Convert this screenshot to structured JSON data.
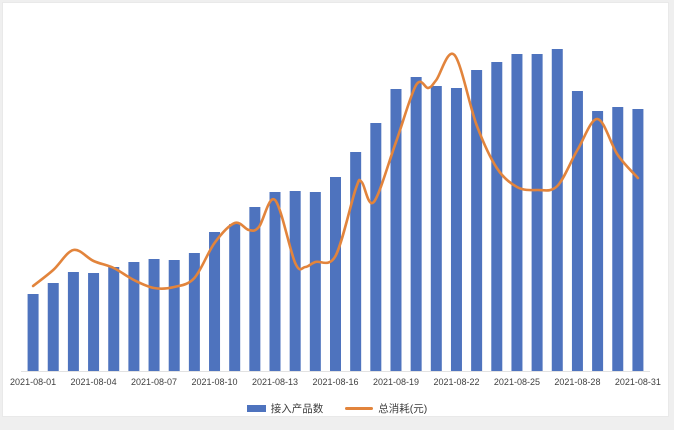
{
  "chart_data": {
    "type": "bar",
    "subtype": "combo-bar-line",
    "title": "",
    "xlabel": "",
    "ylabel": "",
    "y_axis_visible": false,
    "grid": false,
    "legend_position": "bottom-center",
    "ylim": [
      0,
      361
    ],
    "categories": [
      "2021-08-01",
      "2021-08-02",
      "2021-08-03",
      "2021-08-04",
      "2021-08-05",
      "2021-08-06",
      "2021-08-07",
      "2021-08-08",
      "2021-08-09",
      "2021-08-10",
      "2021-08-11",
      "2021-08-12",
      "2021-08-13",
      "2021-08-14",
      "2021-08-15",
      "2021-08-16",
      "2021-08-17",
      "2021-08-18",
      "2021-08-19",
      "2021-08-20",
      "2021-08-21",
      "2021-08-22",
      "2021-08-23",
      "2021-08-24",
      "2021-08-25",
      "2021-08-26",
      "2021-08-27",
      "2021-08-28",
      "2021-08-29",
      "2021-08-30",
      "2021-08-31"
    ],
    "x_tick_labels": [
      "2021-08-01",
      "2021-08-04",
      "2021-08-07",
      "2021-08-10",
      "2021-08-13",
      "2021-08-16",
      "2021-08-19",
      "2021-08-22",
      "2021-08-25",
      "2021-08-28",
      "2021-08-31"
    ],
    "x_tick_indices": [
      0,
      3,
      6,
      9,
      12,
      15,
      18,
      21,
      24,
      27,
      30
    ],
    "series": [
      {
        "name": "接入产品数",
        "type": "bar",
        "color": "#4E73BE",
        "values": [
          77,
          88,
          99,
          98,
          104,
          109,
          112,
          111,
          118,
          139,
          147,
          164,
          179,
          180,
          179,
          194,
          219,
          248,
          282,
          294,
          285,
          283,
          301,
          309,
          317,
          317,
          322,
          280,
          260,
          264,
          262
        ]
      },
      {
        "name": "总消耗(元)",
        "type": "line",
        "color": "#E2843C",
        "points": [
          [
            0,
            85
          ],
          [
            1,
            101
          ],
          [
            2,
            121
          ],
          [
            3,
            110
          ],
          [
            4,
            103
          ],
          [
            5,
            91
          ],
          [
            6,
            83
          ],
          [
            7,
            84
          ],
          [
            8,
            93
          ],
          [
            9,
            128
          ],
          [
            10,
            148
          ],
          [
            10.7,
            141
          ],
          [
            11.2,
            144
          ],
          [
            12,
            171
          ],
          [
            13,
            108
          ],
          [
            13.5,
            104
          ],
          [
            14,
            109
          ],
          [
            15,
            115
          ],
          [
            16,
            182
          ],
          [
            16.3,
            189
          ],
          [
            16.9,
            169
          ],
          [
            18,
            229
          ],
          [
            19,
            286
          ],
          [
            19.6,
            283
          ],
          [
            20,
            291
          ],
          [
            20.9,
            316
          ],
          [
            22,
            246
          ],
          [
            23,
            203
          ],
          [
            24,
            184
          ],
          [
            25,
            181
          ],
          [
            26,
            185
          ],
          [
            27,
            221
          ],
          [
            28,
            252
          ],
          [
            29,
            216
          ],
          [
            30,
            193
          ]
        ]
      }
    ]
  },
  "legend": {
    "bar_label": "接入产品数",
    "line_label": "总消耗(元)"
  },
  "colors": {
    "bar": "#4E73BE",
    "line": "#E2843C",
    "axis_line": "#e2e2e2",
    "label_text": "#404040",
    "card_border": "#e9e9e9",
    "card_bg": "#ffffff",
    "page_bg": "#efefef"
  }
}
